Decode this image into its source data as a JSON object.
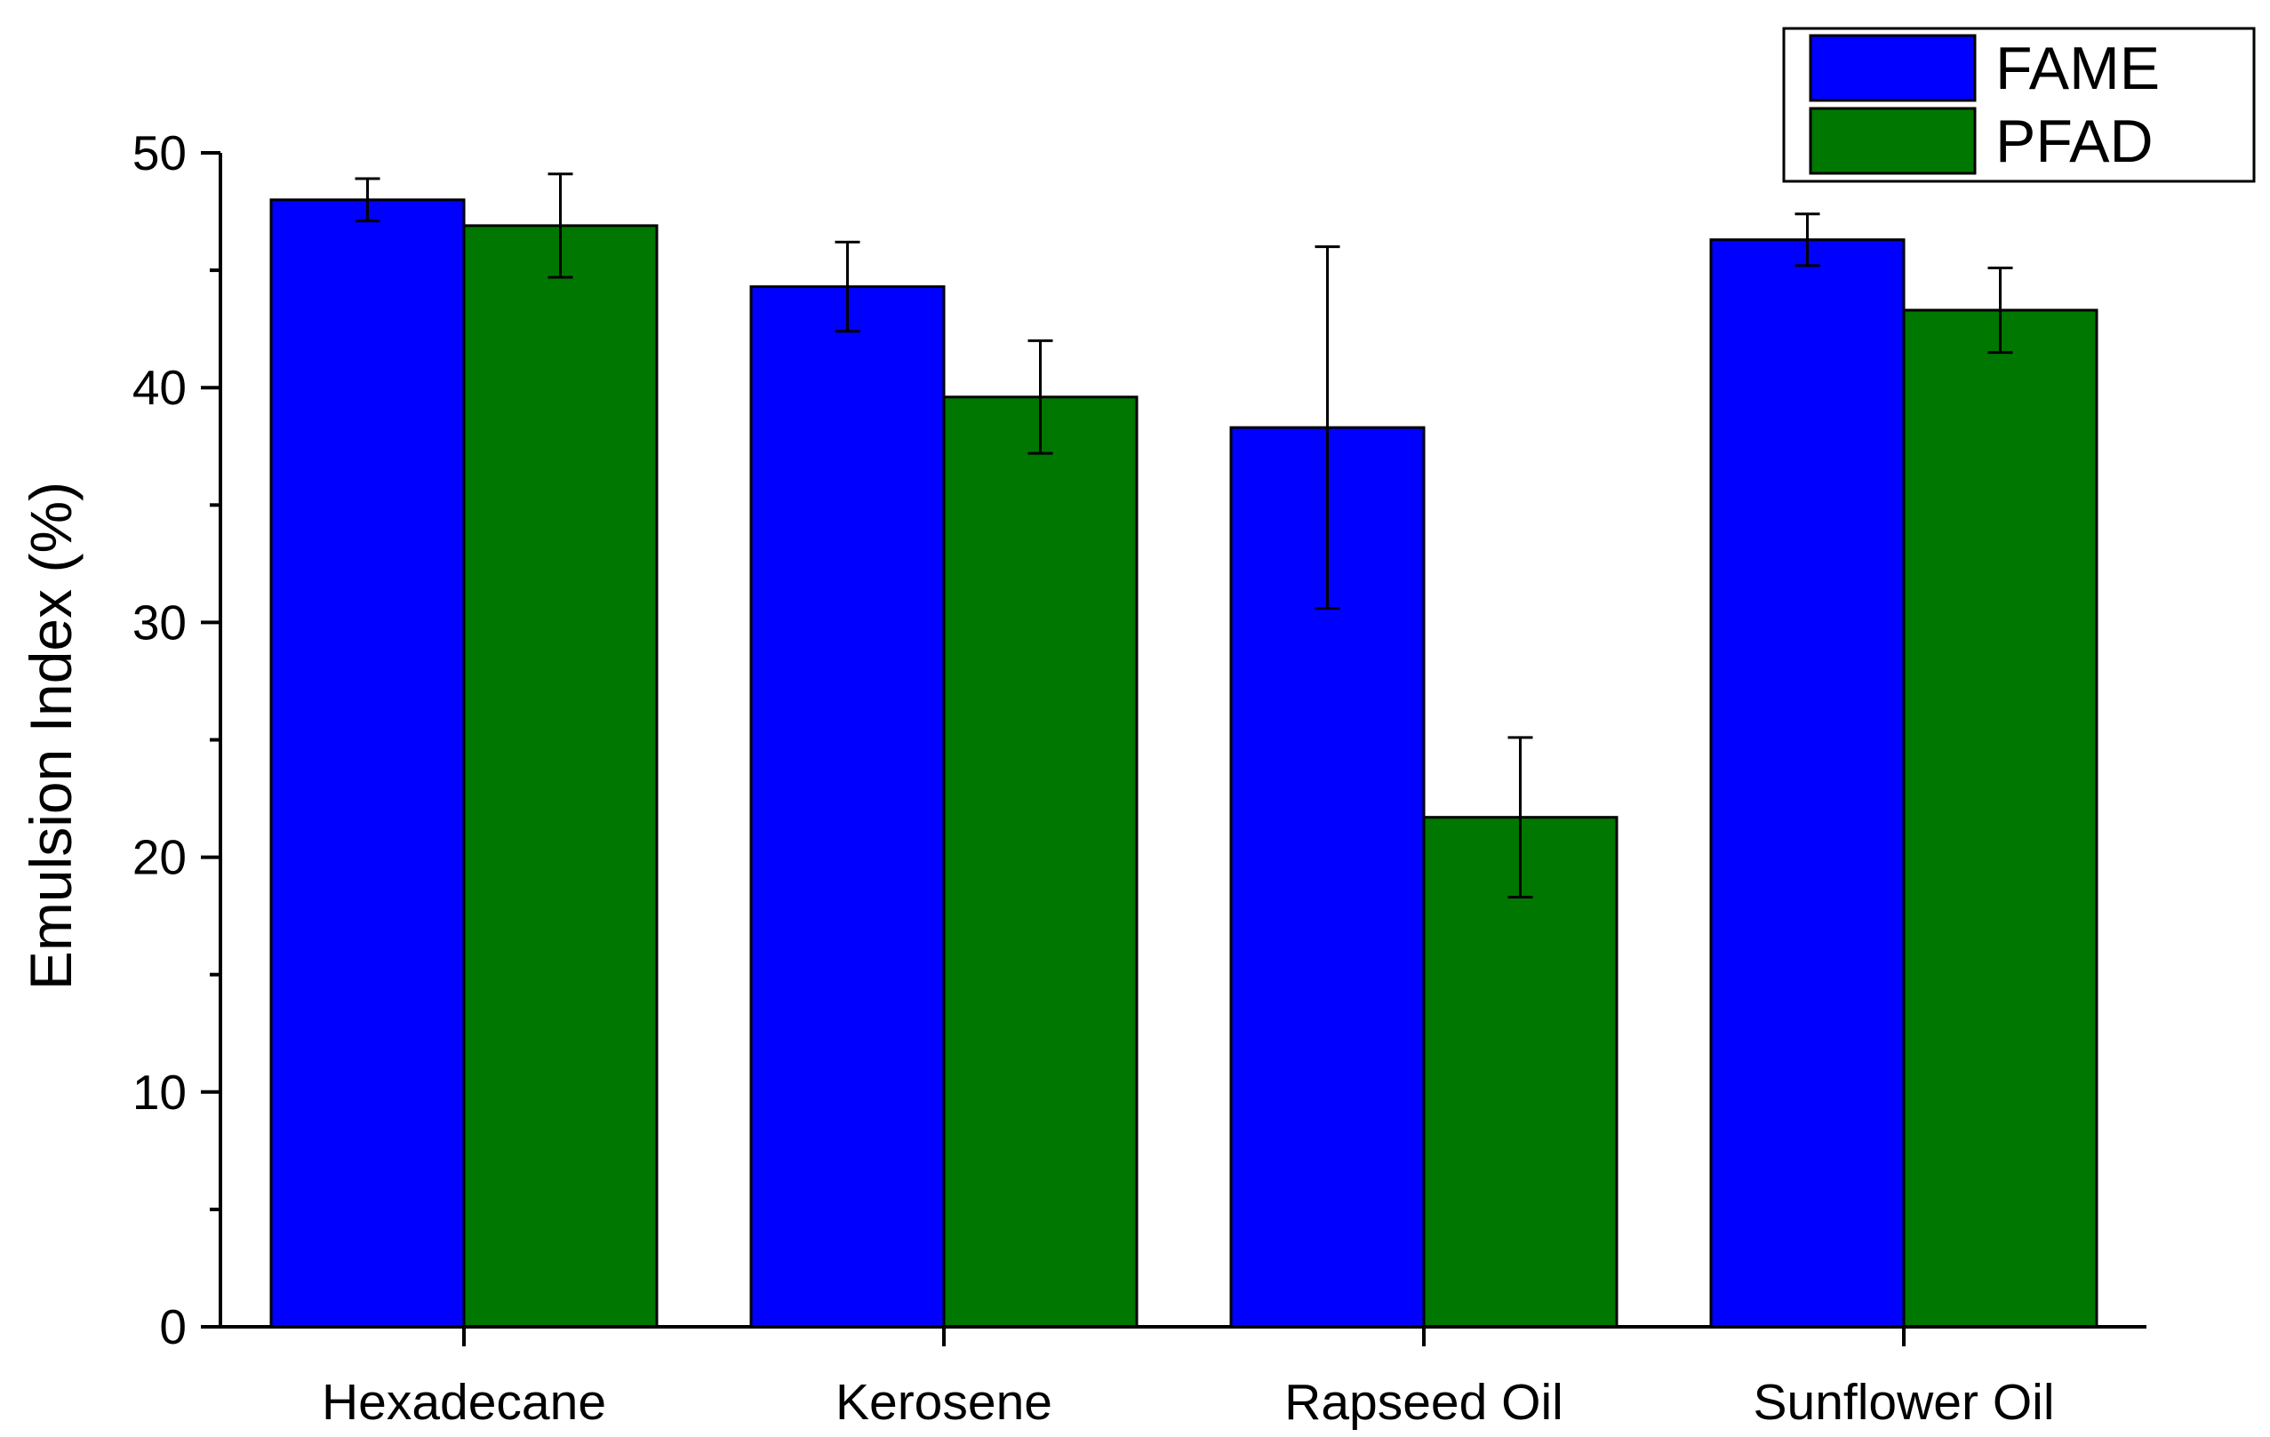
{
  "chart_data": {
    "type": "bar",
    "title": "",
    "xlabel": "",
    "ylabel": "Emulsion Index (%)",
    "ylim": [
      0,
      50
    ],
    "yticks": [
      0,
      10,
      20,
      30,
      40,
      50
    ],
    "grid": false,
    "legend_position": "top-right",
    "categories": [
      "Hexadecane",
      "Kerosene",
      "Rapseed Oil",
      "Sunflower Oil"
    ],
    "series": [
      {
        "name": "FAME",
        "color": "#0000ff",
        "values": [
          48.0,
          44.3,
          38.3,
          46.3
        ],
        "errors": [
          0.9,
          1.9,
          7.7,
          1.1
        ]
      },
      {
        "name": "PFAD",
        "color": "#007700",
        "values": [
          46.9,
          39.6,
          21.7,
          43.3
        ],
        "errors": [
          2.2,
          2.4,
          3.4,
          1.8
        ]
      }
    ]
  }
}
